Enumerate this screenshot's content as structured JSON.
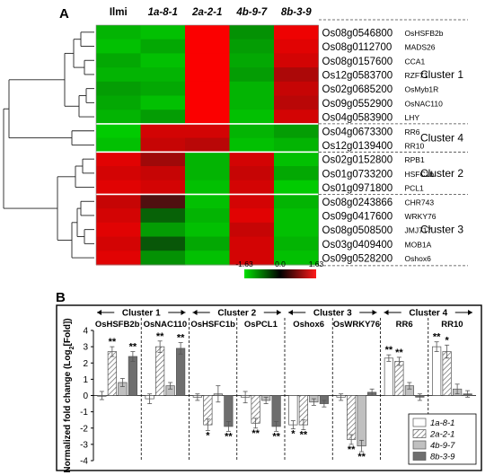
{
  "panel_a": {
    "label": "A"
  },
  "panel_b": {
    "label": "B"
  },
  "chart_data": [
    {
      "type": "heatmap",
      "columns": [
        "Ilmi",
        "1a-8-1",
        "2a-2-1",
        "4b-9-7",
        "8b-3-9"
      ],
      "rows": [
        {
          "locus": "Os08g0546800",
          "gene": "OsHSFB2b",
          "cluster": "Cluster 1"
        },
        {
          "locus": "Os08g0112700",
          "gene": "MADS26",
          "cluster": "Cluster 1"
        },
        {
          "locus": "Os08g0157600",
          "gene": "CCA1",
          "cluster": "Cluster 1"
        },
        {
          "locus": "Os12g0583700",
          "gene": "RZF71",
          "cluster": "Cluster 1"
        },
        {
          "locus": "Os02g0685200",
          "gene": "OsMyb1R",
          "cluster": "Cluster 1"
        },
        {
          "locus": "Os09g0552900",
          "gene": "OsNAC110",
          "cluster": "Cluster 1"
        },
        {
          "locus": "Os04g0583900",
          "gene": "LHY",
          "cluster": "Cluster 1"
        },
        {
          "locus": "Os04g0673300",
          "gene": "RR6",
          "cluster": "Cluster 4"
        },
        {
          "locus": "Os12g0139400",
          "gene": "RR10",
          "cluster": "Cluster 4"
        },
        {
          "locus": "Os02g0152800",
          "gene": "RPB1",
          "cluster": "Cluster 2"
        },
        {
          "locus": "Os01g0733200",
          "gene": "HSFC1b",
          "cluster": "Cluster 2"
        },
        {
          "locus": "Os01g0971800",
          "gene": "PCL1",
          "cluster": "Cluster 2"
        },
        {
          "locus": "Os08g0243866",
          "gene": "CHR743",
          "cluster": "Cluster 3"
        },
        {
          "locus": "Os09g0417600",
          "gene": "WRKY76",
          "cluster": "Cluster 3"
        },
        {
          "locus": "Os08g0508500",
          "gene": "JMJ717",
          "cluster": "Cluster 3"
        },
        {
          "locus": "Os03g0409400",
          "gene": "MOB1A",
          "cluster": "Cluster 3"
        },
        {
          "locus": "Os09g0528200",
          "gene": "Oshox6",
          "cluster": "Cluster 3"
        }
      ],
      "values": [
        [
          -1.2,
          -1.3,
          1.6,
          -0.9,
          1.5
        ],
        [
          -1.3,
          -1.1,
          1.6,
          -1.0,
          1.4
        ],
        [
          -1.1,
          -1.3,
          1.6,
          -1.1,
          1.3
        ],
        [
          -1.2,
          -1.2,
          1.6,
          -1.0,
          1.0
        ],
        [
          -1.0,
          -1.1,
          1.6,
          -1.2,
          1.2
        ],
        [
          -1.1,
          -1.3,
          1.6,
          -1.2,
          1.1
        ],
        [
          -1.2,
          -1.0,
          1.6,
          -1.3,
          1.3
        ],
        [
          -1.4,
          1.3,
          1.3,
          -1.2,
          -1.0
        ],
        [
          -1.3,
          1.2,
          1.1,
          -1.3,
          -1.2
        ],
        [
          1.4,
          0.9,
          -1.2,
          1.3,
          -1.3
        ],
        [
          1.3,
          1.2,
          -1.2,
          1.2,
          -1.1
        ],
        [
          1.4,
          1.3,
          -1.3,
          1.3,
          -1.4
        ],
        [
          1.2,
          0.3,
          -1.3,
          1.3,
          -1.2
        ],
        [
          1.3,
          -0.5,
          -1.2,
          1.4,
          -1.3
        ],
        [
          1.4,
          -1.0,
          -1.3,
          1.2,
          -1.3
        ],
        [
          1.3,
          -0.4,
          -1.1,
          1.3,
          -1.2
        ],
        [
          1.4,
          -0.9,
          -1.3,
          1.3,
          -1.3
        ]
      ],
      "scale": {
        "min": -1.63,
        "mid": 0.0,
        "max": 1.63,
        "labels": [
          "-1.63",
          "0.0",
          "1.63"
        ]
      },
      "cluster_labels": [
        "Cluster 1",
        "Cluster 4",
        "Cluster 2",
        "Cluster 3"
      ]
    },
    {
      "type": "bar",
      "ylabel": "Normalized fold change (Log2[Fold])",
      "ylabel_parts": {
        "main": "Normalized fold change (Log",
        "sub": "2",
        "tail": "[Fold])"
      },
      "ylim": [
        -4,
        4
      ],
      "yticks": [
        "4",
        "3",
        "2",
        "1",
        "0",
        "-1",
        "-2",
        "-3",
        "-4"
      ],
      "clusters": [
        {
          "label": "Cluster 1",
          "genes": [
            "OsHSFB2b",
            "OsNAC110"
          ]
        },
        {
          "label": "Cluster 2",
          "genes": [
            "OsHSFC1b",
            "OsPCL1"
          ]
        },
        {
          "label": "Cluster 3",
          "genes": [
            "Oshox6",
            "OsWRKY76"
          ]
        },
        {
          "label": "Cluster 4",
          "genes": [
            "RR6",
            "RR10"
          ]
        }
      ],
      "categories": [
        "OsHSFB2b",
        "OsNAC110",
        "OsHSFC1b",
        "OsPCL1",
        "Oshox6",
        "OsWRKY76",
        "RR6",
        "RR10"
      ],
      "series": [
        {
          "name": "1a-8-1",
          "values": [
            0.0,
            -0.2,
            -0.1,
            -0.1,
            -1.8,
            -0.1,
            2.3,
            3.0
          ],
          "errors": [
            0.25,
            0.3,
            0.2,
            0.35,
            0.25,
            0.2,
            0.2,
            0.3
          ],
          "fill": "#ffffff"
        },
        {
          "name": "2a-2-1",
          "values": [
            2.7,
            3.0,
            -1.8,
            -1.7,
            -1.8,
            -2.7,
            2.1,
            2.7
          ],
          "errors": [
            0.3,
            0.35,
            0.35,
            0.3,
            0.3,
            0.3,
            0.25,
            0.4
          ],
          "fill": "hatch"
        },
        {
          "name": "4b-9-7",
          "values": [
            0.8,
            0.6,
            0.1,
            -0.3,
            -0.4,
            -3.1,
            0.6,
            0.4
          ],
          "errors": [
            0.25,
            0.2,
            0.5,
            0.2,
            0.2,
            0.35,
            0.2,
            0.3
          ],
          "fill": "#c0c0c0"
        },
        {
          "name": "8b-3-9",
          "values": [
            2.4,
            2.9,
            -1.9,
            -1.9,
            -0.5,
            0.2,
            -0.1,
            0.1
          ],
          "errors": [
            0.3,
            0.35,
            0.3,
            0.3,
            0.2,
            0.2,
            0.2,
            0.2
          ],
          "fill": "#6e6e6e"
        }
      ],
      "significance": [
        {
          "category": "OsHSFB2b",
          "series": "2a-2-1",
          "mark": "**"
        },
        {
          "category": "OsHSFB2b",
          "series": "8b-3-9",
          "mark": "**"
        },
        {
          "category": "OsNAC110",
          "series": "2a-2-1",
          "mark": "**"
        },
        {
          "category": "OsNAC110",
          "series": "8b-3-9",
          "mark": "**"
        },
        {
          "category": "OsHSFC1b",
          "series": "2a-2-1",
          "mark": "*"
        },
        {
          "category": "OsHSFC1b",
          "series": "8b-3-9",
          "mark": "**"
        },
        {
          "category": "OsPCL1",
          "series": "2a-2-1",
          "mark": "**"
        },
        {
          "category": "OsPCL1",
          "series": "8b-3-9",
          "mark": "**"
        },
        {
          "category": "Oshox6",
          "series": "1a-8-1",
          "mark": "*"
        },
        {
          "category": "Oshox6",
          "series": "2a-2-1",
          "mark": "**"
        },
        {
          "category": "OsWRKY76",
          "series": "2a-2-1",
          "mark": "**"
        },
        {
          "category": "OsWRKY76",
          "series": "4b-9-7",
          "mark": "**"
        },
        {
          "category": "RR6",
          "series": "1a-8-1",
          "mark": "**"
        },
        {
          "category": "RR6",
          "series": "2a-2-1",
          "mark": "**"
        },
        {
          "category": "RR10",
          "series": "1a-8-1",
          "mark": "**"
        },
        {
          "category": "RR10",
          "series": "2a-2-1",
          "mark": "*"
        }
      ],
      "legend": [
        "1a-8-1",
        "2a-2-1",
        "4b-9-7",
        "8b-3-9"
      ],
      "legend_position": "bottom-right"
    }
  ]
}
